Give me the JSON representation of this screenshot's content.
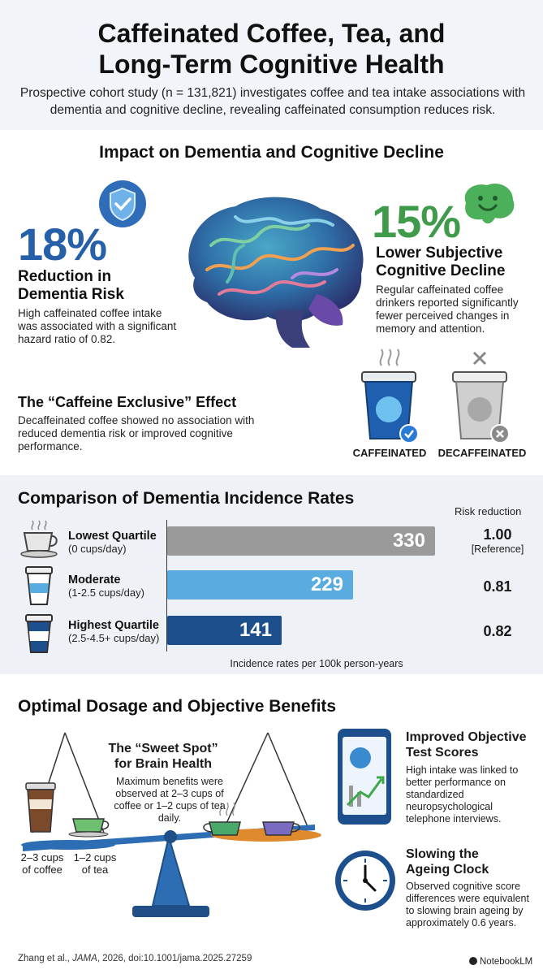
{
  "header": {
    "title_line1": "Caffeinated Coffee, Tea, and",
    "title_line2": "Long-Term Cognitive Health",
    "subtitle": "Prospective cohort study (n = 131,821) investigates coffee and tea intake associations with dementia and cognitive decline, revealing caffeinated consumption reduces risk."
  },
  "impact": {
    "heading": "Impact on Dementia and Cognitive Decline",
    "left_stat": "18%",
    "left_title_1": "Reduction in",
    "left_title_2": "Dementia Risk",
    "left_body": "High caffeinated coffee intake was associated with a significant hazard ratio of 0.82.",
    "right_stat": "15%",
    "right_title_1": "Lower Subjective",
    "right_title_2": "Cognitive Decline",
    "right_body": "Regular caffeinated coffee drinkers reported significantly fewer perceived changes in memory and attention.",
    "exclusive_title": "The “Caffeine Exclusive” Effect",
    "exclusive_body": "Decaffeinated coffee showed no association with reduced dementia risk or improved cognitive performance.",
    "caffeinated_label": "CAFFEINATED",
    "decaffeinated_label": "DECAFFEINATED"
  },
  "comparison": {
    "heading": "Comparison of Dementia Incidence Rates",
    "risk_header": "Risk reduction",
    "footer": "Incidence rates per 100k person-years",
    "rows": [
      {
        "label": "Lowest Quartile",
        "sub": "(0 cups/day)",
        "rate": "330",
        "risk": "1.00",
        "risk_note": "[Reference]",
        "color": "#9a9a9a"
      },
      {
        "label": "Moderate",
        "sub": "(1-2.5 cups/day)",
        "rate": "229",
        "risk": "0.81",
        "risk_note": "",
        "color": "#5aace0"
      },
      {
        "label": "Highest Quartile",
        "sub": "(2.5-4.5+ cups/day)",
        "rate": "141",
        "risk": "0.82",
        "risk_note": "",
        "color": "#1d4f8c"
      }
    ]
  },
  "chart_data": {
    "type": "bar",
    "categories": [
      "Lowest Quartile",
      "Moderate",
      "Highest Quartile"
    ],
    "values": [
      330,
      229,
      141
    ],
    "xlabel": "Incidence rates per 100k person-years",
    "xlim": [
      0,
      360
    ]
  },
  "dosage": {
    "heading": "Optimal Dosage and Objective Benefits",
    "sweet_title_1": "The “Sweet Spot”",
    "sweet_title_2": "for Brain Health",
    "sweet_body": "Maximum benefits were observed at 2–3 cups of coffee or 1–2 cups of tea daily.",
    "coffee_label_1": "2–3 cups",
    "coffee_label_2": "of coffee",
    "tea_label_1": "1–2 cups",
    "tea_label_2": "of tea",
    "scores_title_1": "Improved Objective",
    "scores_title_2": "Test Scores",
    "scores_body": "High intake was linked to better performance on standardized neuropsychological telephone interviews.",
    "clock_title_1": "Slowing the",
    "clock_title_2": "Ageing Clock",
    "clock_body": "Observed cognitive score differences were equivalent to slowing brain ageing by approximately 0.6 years."
  },
  "footer": {
    "citation_pre": "Zhang et al., ",
    "citation_journal": "JAMA",
    "citation_post": ", 2026, doi:10.1001/jama.2025.27259",
    "brand": "NotebookLM"
  },
  "colors": {
    "blue": "#2560a8",
    "green": "#3f9a4a",
    "dark_blue": "#1d4f8c",
    "light_blue": "#5aace0",
    "gray": "#9a9a9a"
  }
}
